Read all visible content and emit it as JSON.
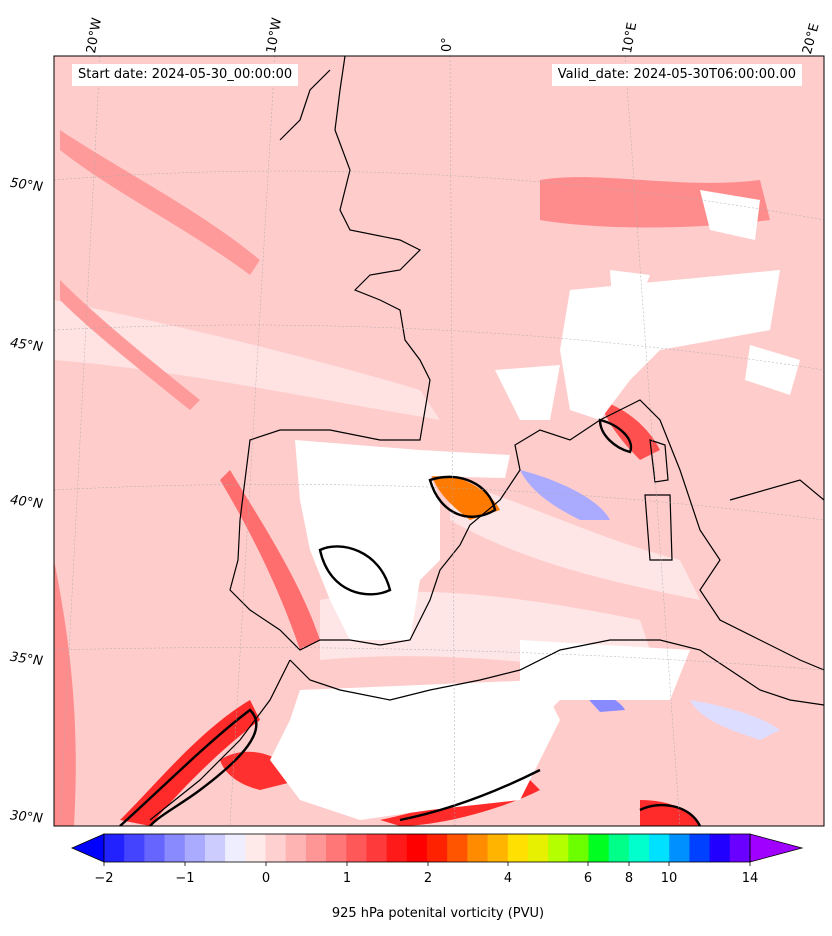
{
  "header": {
    "start_date": "Start date: 2024-05-30_00:00:00",
    "valid_date": "Valid_date: 2024-05-30T06:00:00.00"
  },
  "axes": {
    "lon_labels": [
      "20°W",
      "10°W",
      "0°",
      "10°E",
      "20°E"
    ],
    "lat_labels": [
      "50°N",
      "45°N",
      "40°N",
      "35°N",
      "30°N"
    ]
  },
  "colorbar": {
    "title": "925 hPa potenital vorticity (PVU)",
    "ticks": [
      "−2",
      "−1",
      "0",
      "1",
      "2",
      "4",
      "6",
      "8",
      "10",
      "14"
    ],
    "colors": [
      "#0000ff",
      "#2222ff",
      "#4444ff",
      "#6666ff",
      "#8a8aff",
      "#aaaaff",
      "#ccccff",
      "#eeeeff",
      "#ffeaea",
      "#ffd0d0",
      "#ffb4b4",
      "#ff9696",
      "#ff7777",
      "#ff5858",
      "#ff3a3a",
      "#ff1a1a",
      "#ff0000",
      "#ff2200",
      "#ff5500",
      "#ff8c00",
      "#ffb400",
      "#ffe000",
      "#e6f000",
      "#b4ff00",
      "#6cff00",
      "#00ff20",
      "#00ff88",
      "#00ffcc",
      "#00e0ff",
      "#0090ff",
      "#0040ff",
      "#2200ff",
      "#6a00ff",
      "#a000ff"
    ]
  },
  "colors": {
    "background_field": "#ffcece",
    "contour_line": "#000000"
  }
}
